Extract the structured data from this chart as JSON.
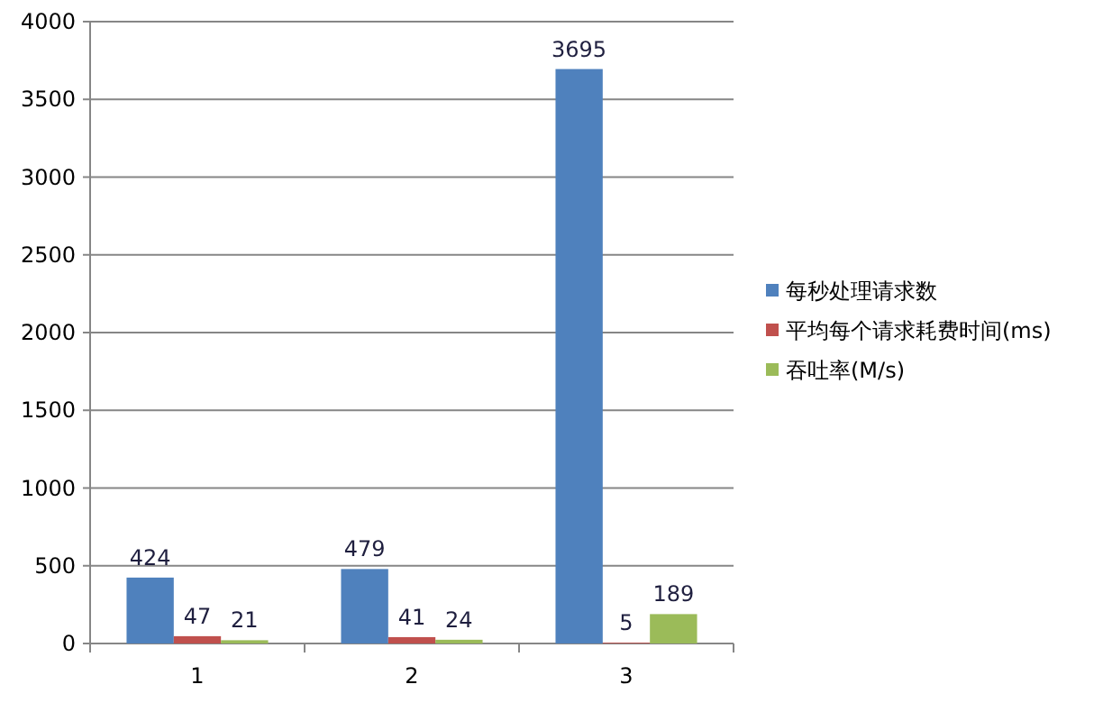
{
  "chart_data": {
    "type": "bar",
    "categories": [
      "1",
      "2",
      "3"
    ],
    "series": [
      {
        "name": "每秒处理请求数",
        "color": "#4f81bd",
        "values": [
          424,
          479,
          3695
        ]
      },
      {
        "name": "平均每个请求耗费时间(ms)",
        "color": "#c0504d",
        "values": [
          47,
          41,
          5
        ]
      },
      {
        "name": "吞吐率(M/s)",
        "color": "#9bbb59",
        "values": [
          21,
          24,
          189
        ]
      }
    ],
    "ylim": [
      0,
      4000
    ],
    "yticks": [
      0,
      500,
      1000,
      1500,
      2000,
      2500,
      3000,
      3500,
      4000
    ],
    "grid": "y",
    "legend": "right",
    "data_labels": true
  }
}
